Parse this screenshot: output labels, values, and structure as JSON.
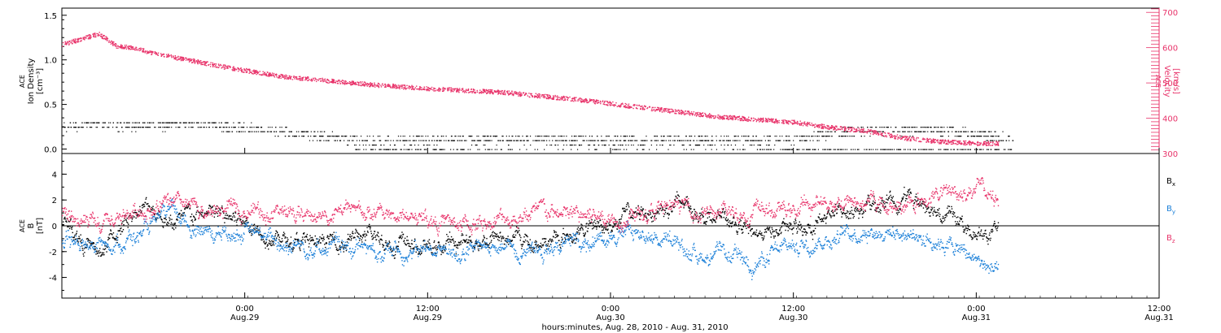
{
  "colors": {
    "black": "#000000",
    "pink": "#e8336a",
    "blue": "#1a7fd8"
  },
  "chart_data": [
    {
      "type": "scatter",
      "panel": "top",
      "ylabel_left": [
        "ACE",
        "Ion Density",
        "[cm⁻³]"
      ],
      "ylabel_right": [
        "ACE",
        "Velocity",
        "[km/s]"
      ],
      "ylim_left": [
        -0.05,
        1.58
      ],
      "yticks_left": [
        "0.0",
        "0.5",
        "1.0",
        "1.5"
      ],
      "ytick_values_left": [
        0.0,
        0.5,
        1.0,
        1.5
      ],
      "ylim_right": [
        300,
        712
      ],
      "yticks_right": [
        "300",
        "400",
        "500",
        "600",
        "700"
      ],
      "ytick_values_right": [
        300,
        400,
        500,
        600,
        700
      ],
      "series": [
        {
          "role": "ion-density",
          "axis": "left",
          "color": "#000000",
          "x": [
            0.2,
            0.4,
            0.6,
            0.8,
            1.0,
            1.2,
            1.4,
            1.6,
            1.8,
            2.0,
            2.2,
            2.4,
            2.6
          ],
          "y": [
            0.27,
            0.28,
            0.2,
            0.1,
            0.1,
            0.12,
            0.1,
            0.1,
            0.1,
            0.12,
            0.22,
            0.22,
            0.12
          ]
        },
        {
          "role": "velocity",
          "axis": "right",
          "color": "#e8336a",
          "x": [
            0.0,
            0.1,
            0.15,
            0.2,
            0.25,
            0.35,
            0.45,
            0.6,
            0.8,
            1.0,
            1.2,
            1.4,
            1.6,
            1.8,
            2.0,
            2.1,
            2.2,
            2.3,
            2.4,
            2.5,
            2.56
          ],
          "y": [
            610,
            640,
            605,
            600,
            585,
            565,
            545,
            520,
            500,
            485,
            475,
            455,
            430,
            405,
            390,
            375,
            365,
            345,
            335,
            330,
            330
          ]
        }
      ]
    },
    {
      "type": "line",
      "panel": "bottom",
      "ylabel_left": [
        "ACE",
        "B",
        "[nT]"
      ],
      "ylim": [
        -5.6,
        5.6
      ],
      "yticks": [
        "-4",
        "-2",
        "0",
        "2",
        "4"
      ],
      "ytick_values": [
        -4,
        -2,
        0,
        2,
        4
      ],
      "legend_position": "right",
      "series": [
        {
          "name": "B",
          "sub": "x",
          "color": "#000000",
          "x": [
            0.0,
            0.1,
            0.2,
            0.25,
            0.3,
            0.4,
            0.5,
            0.6,
            0.7,
            0.8,
            0.9,
            1.0,
            1.1,
            1.2,
            1.3,
            1.4,
            1.5,
            1.6,
            1.7,
            1.8,
            1.9,
            2.0,
            2.1,
            2.2,
            2.3,
            2.4,
            2.5,
            2.56
          ],
          "y": [
            0.5,
            -2.3,
            1.3,
            1.5,
            0.2,
            1.0,
            0.4,
            -1.0,
            -1.5,
            -0.8,
            -1.2,
            -1.8,
            -1.2,
            -0.8,
            -1.4,
            -0.6,
            0.4,
            1.2,
            1.8,
            0.5,
            -0.5,
            -0.3,
            0.8,
            1.5,
            2.2,
            1.5,
            -0.8,
            -0.6
          ]
        },
        {
          "name": "B",
          "sub": "y",
          "color": "#1a7fd8",
          "x": [
            0.0,
            0.1,
            0.2,
            0.3,
            0.4,
            0.5,
            0.6,
            0.7,
            0.8,
            0.9,
            1.0,
            1.1,
            1.2,
            1.3,
            1.4,
            1.5,
            1.6,
            1.7,
            1.8,
            1.9,
            2.0,
            2.1,
            2.2,
            2.3,
            2.4,
            2.5,
            2.56
          ],
          "y": [
            -1.2,
            -1.5,
            -0.8,
            0.9,
            -0.6,
            -0.4,
            -1.3,
            -1.5,
            -1.8,
            -1.9,
            -1.8,
            -2.0,
            -1.7,
            -1.5,
            -1.3,
            -0.5,
            -0.5,
            -1.9,
            -2.4,
            -2.8,
            -1.5,
            -0.8,
            -0.2,
            -0.5,
            -1.0,
            -2.6,
            -3.8
          ]
        },
        {
          "name": "B",
          "sub": "z",
          "color": "#e8336a",
          "x": [
            0.0,
            0.1,
            0.2,
            0.3,
            0.4,
            0.5,
            0.6,
            0.7,
            0.8,
            0.9,
            1.0,
            1.1,
            1.2,
            1.3,
            1.4,
            1.5,
            1.6,
            1.7,
            1.8,
            1.9,
            2.0,
            2.1,
            2.2,
            2.3,
            2.4,
            2.5,
            2.56
          ],
          "y": [
            0.8,
            -0.3,
            1.3,
            1.6,
            1.0,
            1.4,
            1.0,
            0.8,
            1.2,
            0.8,
            0.6,
            0.0,
            0.6,
            1.0,
            0.8,
            0.8,
            1.0,
            1.5,
            0.8,
            1.2,
            1.2,
            2.0,
            1.8,
            1.5,
            2.5,
            3.0,
            1.8
          ]
        }
      ]
    }
  ],
  "x_axis": {
    "start": 0.0,
    "end": 3.0,
    "ticks": [
      {
        "x": 0.5,
        "line1": "0:00",
        "line2": "Aug.29"
      },
      {
        "x": 1.0,
        "line1": "12:00",
        "line2": "Aug.29"
      },
      {
        "x": 1.5,
        "line1": "0:00",
        "line2": "Aug.30"
      },
      {
        "x": 2.0,
        "line1": "12:00",
        "line2": "Aug.30"
      },
      {
        "x": 2.5,
        "line1": "0:00",
        "line2": "Aug.31"
      },
      {
        "x": 3.0,
        "line1": "12:00",
        "line2": "Aug.31"
      }
    ],
    "title": "hours:minutes, Aug. 28, 2010 - Aug. 31, 2010"
  }
}
